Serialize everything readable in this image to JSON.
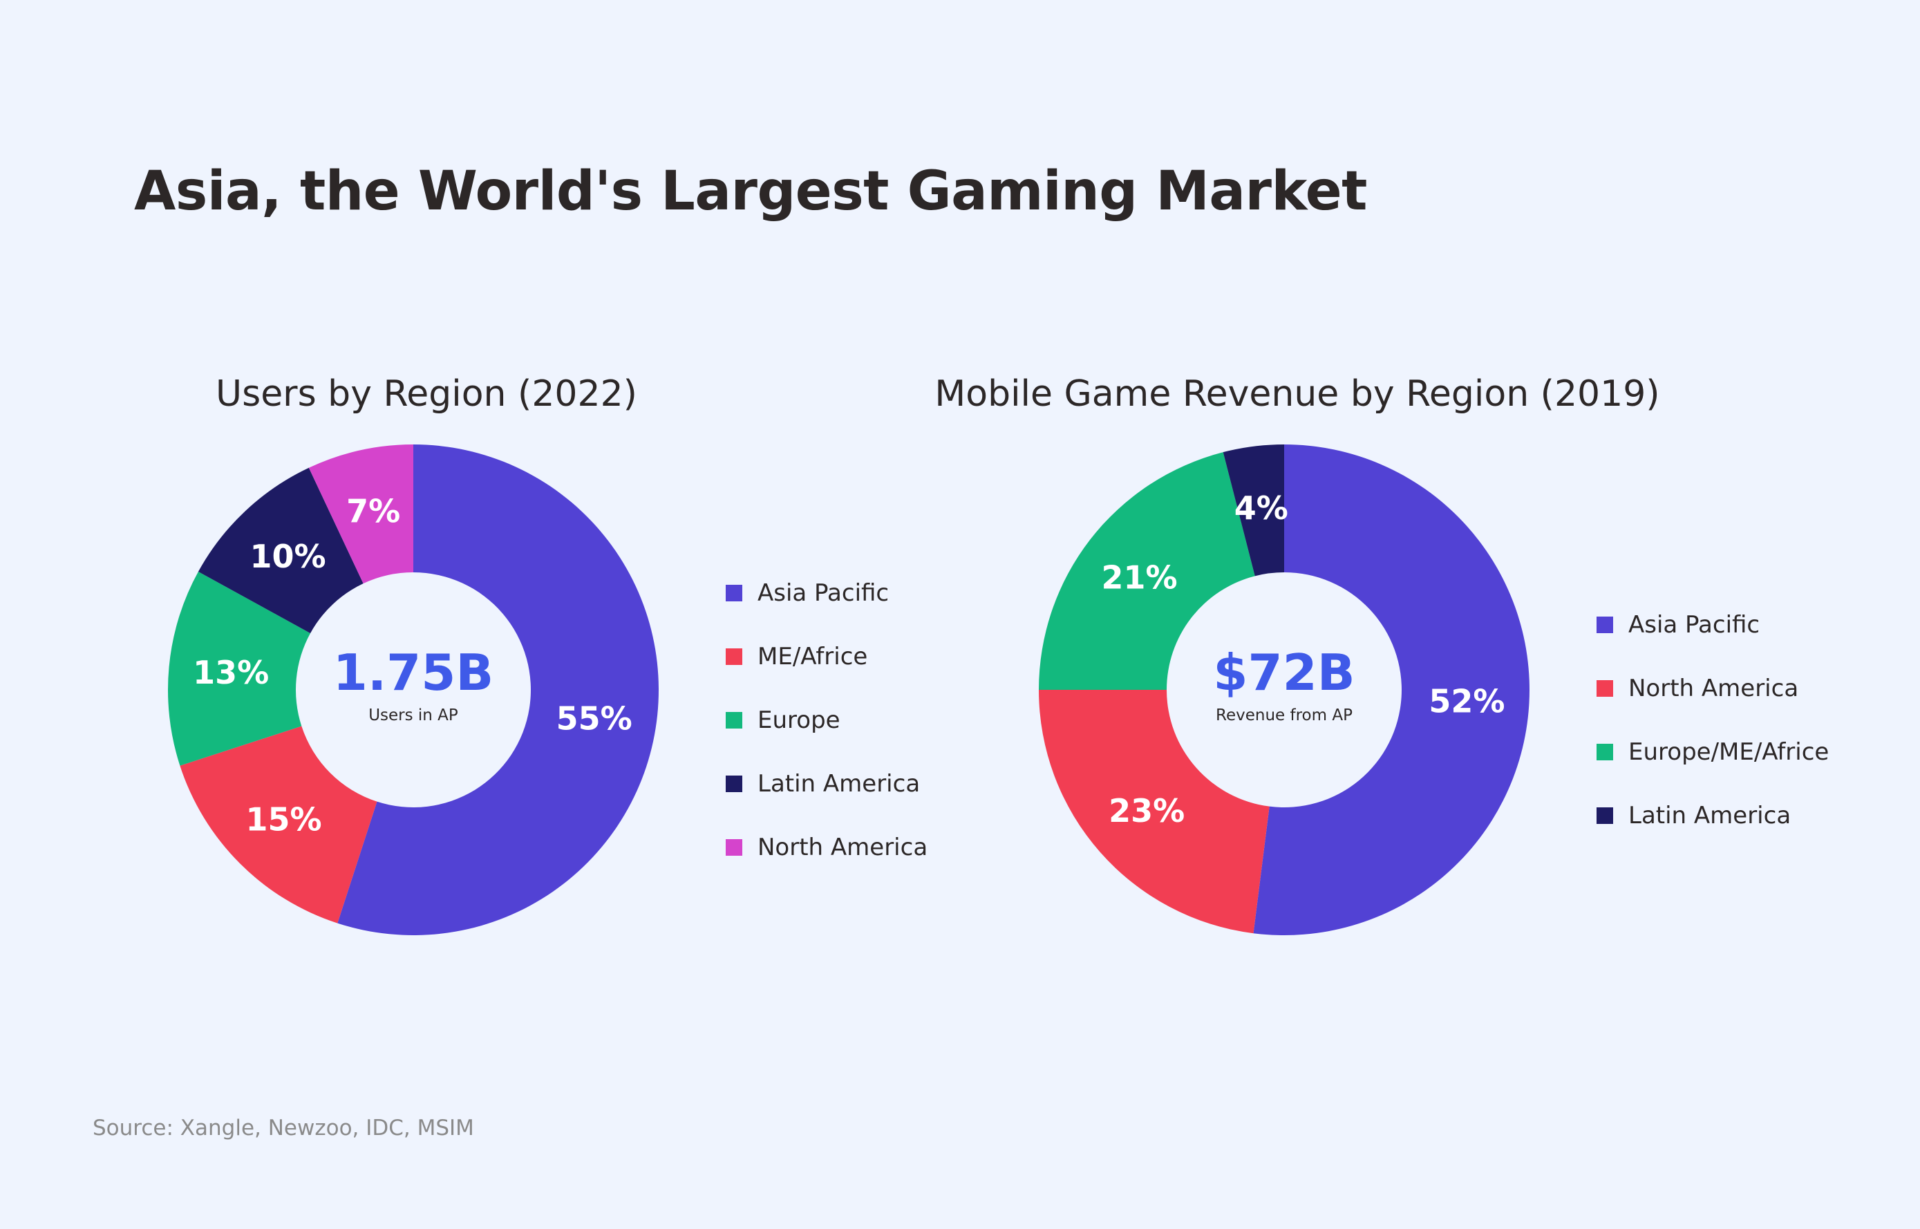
{
  "title": "Asia, the World's Largest Gaming Market",
  "source": "Source: Xangle, Newzoo, IDC, MSIM",
  "chart_data": [
    {
      "type": "pie",
      "title": "Users by Region (2022)",
      "center_value": "1.75B",
      "center_caption": "Users in AP",
      "center_color": "#3f5ae8",
      "categories": [
        "Asia Pacific",
        "ME/Africe",
        "Europe",
        "Latin America",
        "North America"
      ],
      "values": [
        55,
        15,
        13,
        10,
        7
      ],
      "labels": [
        "55%",
        "15%",
        "13%",
        "10%",
        "7%"
      ],
      "colors": [
        "#5242d4",
        "#f23e53",
        "#13b97e",
        "#1d1b63",
        "#d544cc"
      ],
      "legend": [
        "Asia Pacific",
        "ME/Africe",
        "Europe",
        "Latin America",
        "North America"
      ]
    },
    {
      "type": "pie",
      "title": "Mobile Game Revenue by Region (2019)",
      "center_value": "$72B",
      "center_caption": "Revenue from AP",
      "center_color": "#3f5ae8",
      "categories": [
        "Asia Pacific",
        "North America",
        "Europe/ME/Africe",
        "Latin America"
      ],
      "values": [
        52,
        23,
        21,
        4
      ],
      "labels": [
        "52%",
        "23%",
        "21%",
        "4%"
      ],
      "colors": [
        "#5242d4",
        "#f23e53",
        "#13b97e",
        "#1d1b63"
      ],
      "legend": [
        "Asia Pacific",
        "North America",
        "Europe/ME/Africe",
        "Latin America"
      ]
    }
  ]
}
